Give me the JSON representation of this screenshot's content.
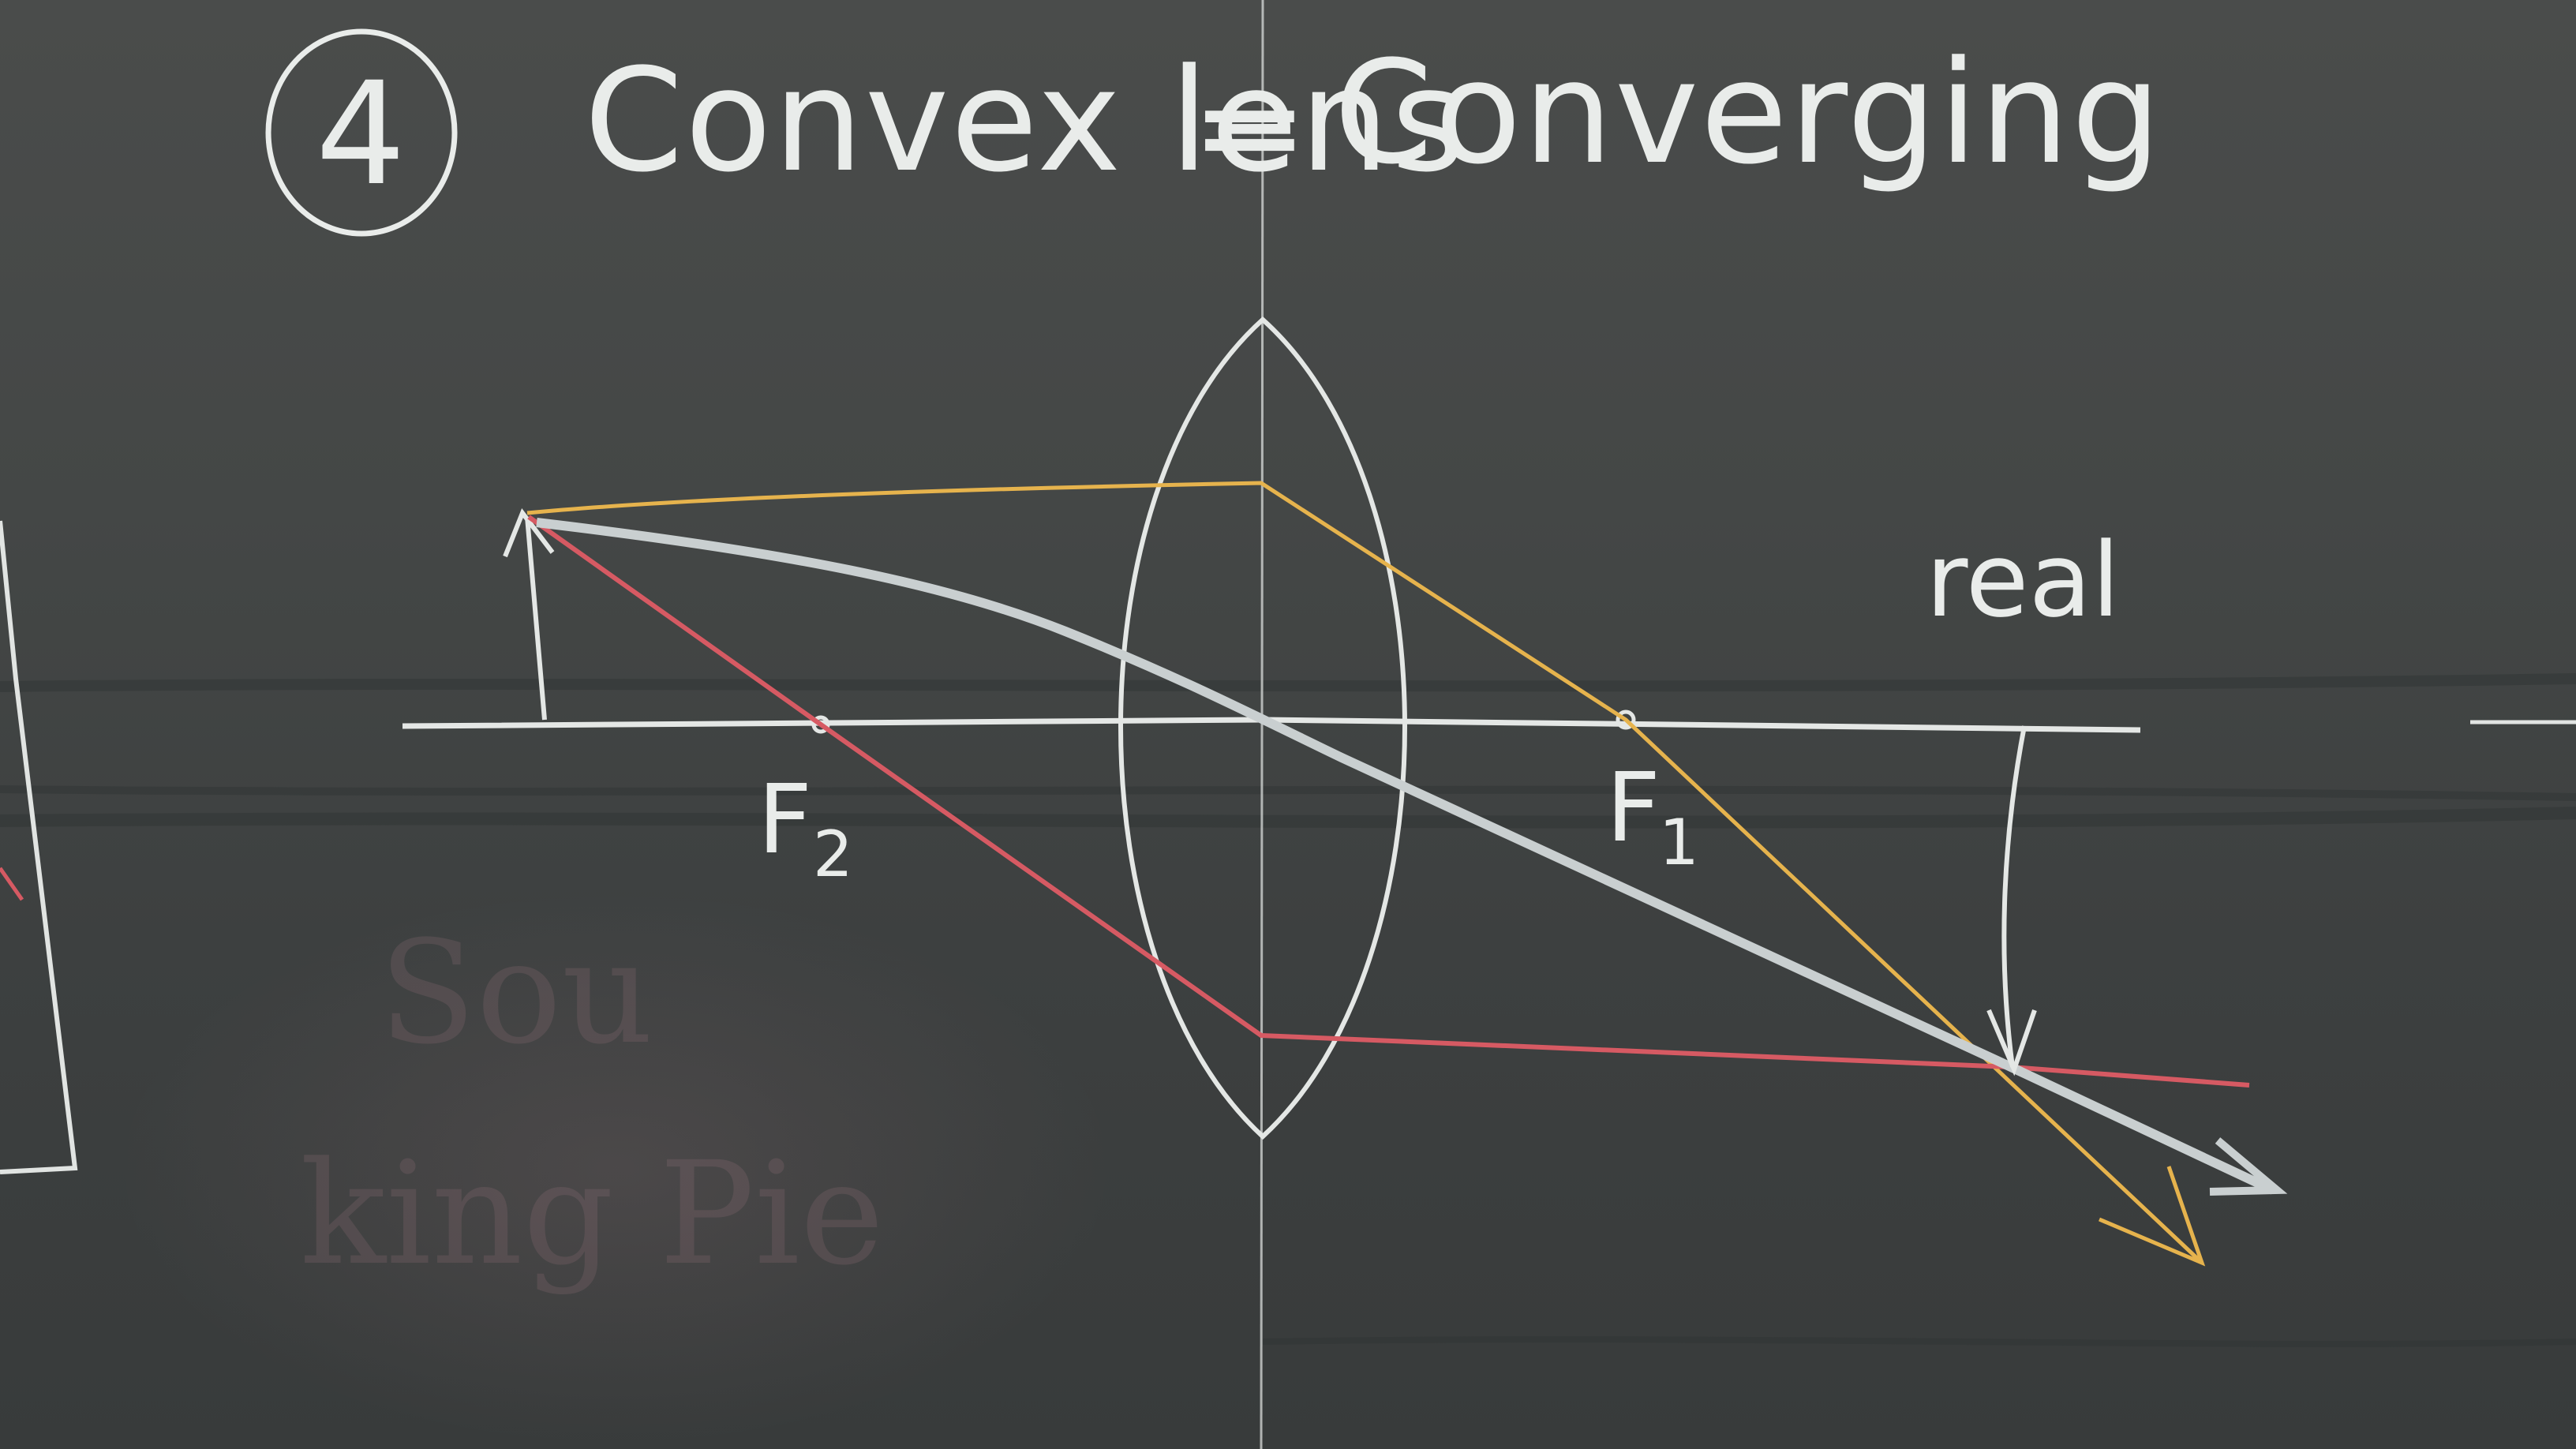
{
  "board": {
    "item_number": "4",
    "title_left": "Convex lens",
    "title_dash": "=",
    "title_right": "Converging",
    "focal_left": "F",
    "focal_left_sub": "2",
    "focal_right": "F",
    "focal_right_sub": "1",
    "image_label": "real",
    "erased_text_1": "Sou",
    "erased_text_2": "king Pie"
  },
  "colors": {
    "chalk_white": "#e9ecea",
    "ray_yellow": "#e6b34d",
    "ray_red": "#d65a63",
    "ray_gray": "#c9cfd0",
    "board": "#434645"
  }
}
